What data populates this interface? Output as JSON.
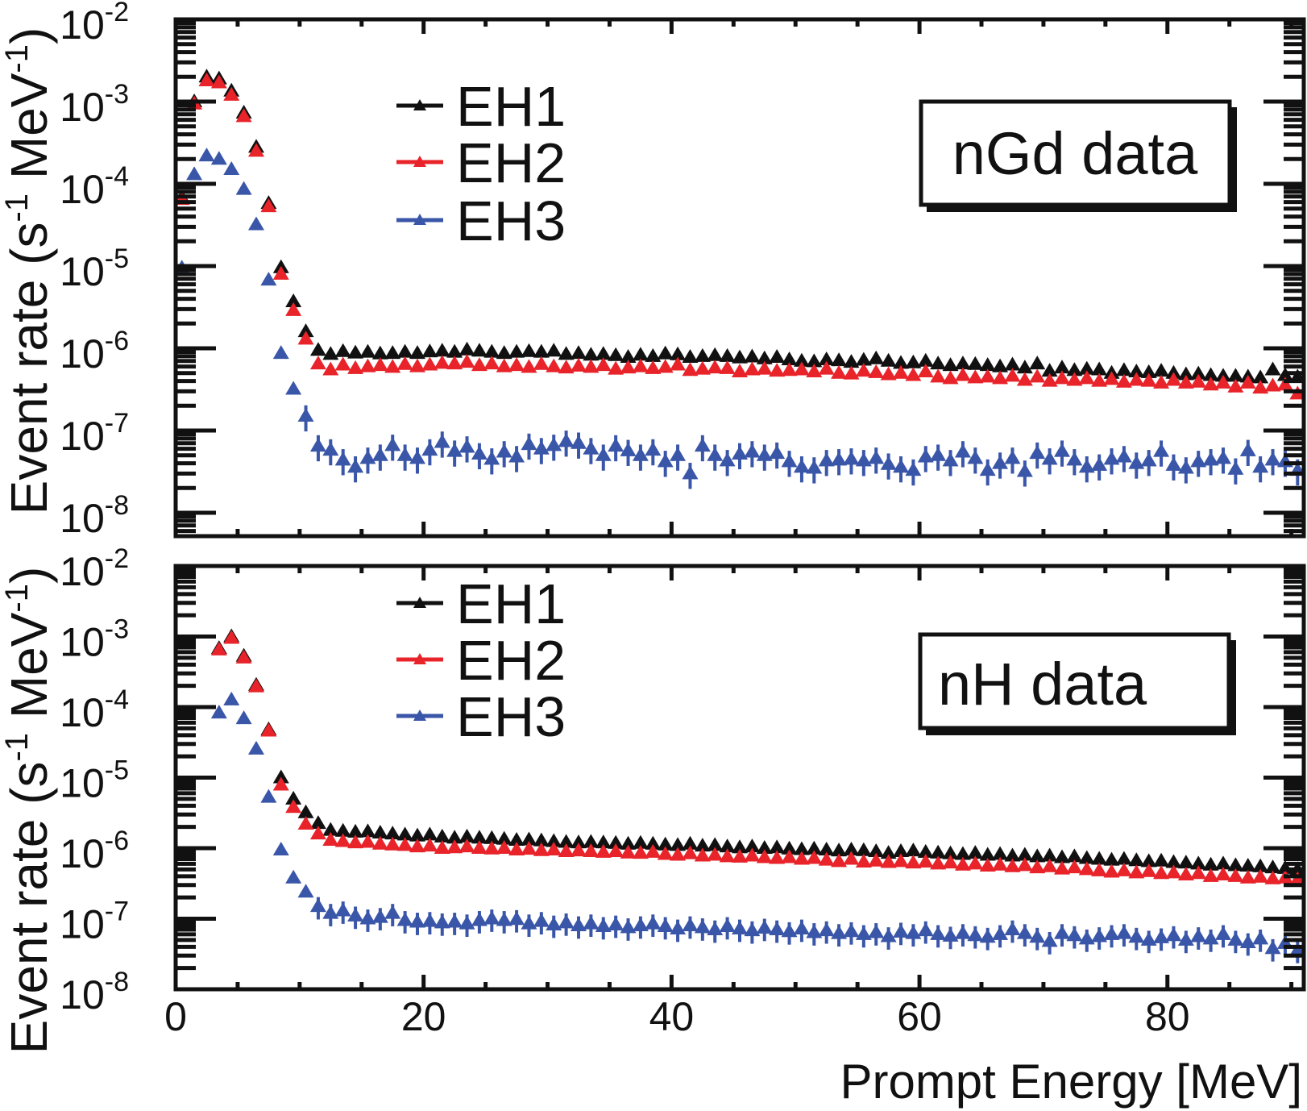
{
  "chart_data": [
    {
      "type": "scatter",
      "panel_label": "nGd data",
      "xlabel": "",
      "ylabel": "Event rate (s⁻¹ MeV⁻¹)",
      "ylabel_parts": {
        "main": "Event rate (s",
        "sup1": "-1",
        "mid": " MeV",
        "sup2": "-1",
        "end": ")"
      },
      "xlim": [
        0,
        91
      ],
      "ylim": [
        5e-09,
        0.01
      ],
      "yscale": "log",
      "x_ticks": [
        "0",
        "20",
        "40",
        "60",
        "80"
      ],
      "x_tick_values": [
        0,
        20,
        40,
        60,
        80
      ],
      "y_ticks": [
        {
          "base": "10",
          "exp": "-2",
          "value": 0.01
        },
        {
          "base": "10",
          "exp": "-3",
          "value": 0.001
        },
        {
          "base": "10",
          "exp": "-4",
          "value": 0.0001
        },
        {
          "base": "10",
          "exp": "-5",
          "value": 1e-05
        },
        {
          "base": "10",
          "exp": "-6",
          "value": 1e-06
        },
        {
          "base": "10",
          "exp": "-7",
          "value": 1e-07
        },
        {
          "base": "10",
          "exp": "-8",
          "value": 1e-08
        }
      ],
      "legend_position": "top-center",
      "x_start": 0.5,
      "bin_width": 1,
      "series": [
        {
          "name": "EH1",
          "color": "#111111",
          "values": [
            6.8e-05,
            0.001,
            0.002,
            0.0019,
            0.00135,
            0.00073,
            0.00028,
            5.8e-05,
            9.6e-06,
            3.7e-06,
            1.6e-06,
            9.5e-07,
            8.5e-07,
            9.2e-07,
            8.8e-07,
            9e-07,
            8.6e-07,
            8.7e-07,
            9e-07,
            8.7e-07,
            9.1e-07,
            9.3e-07,
            9e-07,
            9.6e-07,
            9.3e-07,
            9e-07,
            8.7e-07,
            9e-07,
            9.2e-07,
            9e-07,
            9.3e-07,
            8.5e-07,
            8.7e-07,
            8.3e-07,
            8.5e-07,
            8.2e-07,
            7.8e-07,
            8.3e-07,
            8e-07,
            8.6e-07,
            8.4e-07,
            7.8e-07,
            8e-07,
            8.2e-07,
            8e-07,
            7.7e-07,
            7.9e-07,
            7.5e-07,
            7.8e-07,
            7.3e-07,
            7e-07,
            6.9e-07,
            7.3e-07,
            7.1e-07,
            6.8e-07,
            7.2e-07,
            7.5e-07,
            7e-07,
            6.6e-07,
            6.7e-07,
            7e-07,
            6.5e-07,
            6.2e-07,
            6.5e-07,
            6.4e-07,
            6.2e-07,
            6e-07,
            6.3e-07,
            5.8e-07,
            6.5e-07,
            5.3e-07,
            5.8e-07,
            5.4e-07,
            5.6e-07,
            5.5e-07,
            5e-07,
            5.4e-07,
            5.2e-07,
            5.1e-07,
            5.3e-07,
            5e-07,
            4.8e-07,
            4.9e-07,
            4.7e-07,
            4.6e-07,
            4.6e-07,
            4.5e-07,
            4.4e-07,
            5.5e-07,
            4.7e-07,
            4.5e-07
          ]
        },
        {
          "name": "EH2",
          "color": "#e8232a",
          "values": [
            6.5e-05,
            0.00094,
            0.0018,
            0.0017,
            0.0012,
            0.00066,
            0.00025,
            5.3e-05,
            8e-06,
            2.9e-06,
            1.3e-06,
            6.5e-07,
            5.5e-07,
            6.3e-07,
            5.7e-07,
            6e-07,
            6.2e-07,
            5.9e-07,
            6.4e-07,
            6e-07,
            6.3e-07,
            6.6e-07,
            6.5e-07,
            6.8e-07,
            6.2e-07,
            6.5e-07,
            6e-07,
            6.2e-07,
            5.9e-07,
            6.4e-07,
            6e-07,
            5.8e-07,
            6.1e-07,
            5.9e-07,
            6.2e-07,
            5.6e-07,
            5.8e-07,
            6e-07,
            5.7e-07,
            5.9e-07,
            6.3e-07,
            5.4e-07,
            5.6e-07,
            5.8e-07,
            5.7e-07,
            5.2e-07,
            5.5e-07,
            5.6e-07,
            5.3e-07,
            5.4e-07,
            5.5e-07,
            5.2e-07,
            5.6e-07,
            5e-07,
            4.9e-07,
            5.3e-07,
            5.1e-07,
            4.8e-07,
            5e-07,
            4.7e-07,
            5.2e-07,
            4.5e-07,
            4.3e-07,
            4.7e-07,
            4.4e-07,
            4.5e-07,
            4.3e-07,
            4.6e-07,
            4.1e-07,
            4.5e-07,
            4e-07,
            4.3e-07,
            4.1e-07,
            4.3e-07,
            4e-07,
            4.2e-07,
            3.9e-07,
            4.1e-07,
            4e-07,
            3.8e-07,
            4.1e-07,
            3.8e-07,
            3.9e-07,
            3.6e-07,
            3.8e-07,
            3.4e-07,
            3.8e-07,
            3.3e-07,
            3.5e-07,
            3.6e-07,
            2.8e-07
          ]
        },
        {
          "name": "EH3",
          "color": "#3a56a8",
          "values": [
            9.5e-06,
            0.00013,
            0.00022,
            0.0002,
            0.00015,
            8.6e-05,
            3.2e-05,
            6.8e-06,
            8.7e-07,
            3.2e-07,
            1.5e-07,
            6.5e-08,
            5.8e-08,
            4.4e-08,
            3.6e-08,
            4.6e-08,
            5e-08,
            6.6e-08,
            5e-08,
            4.6e-08,
            5.8e-08,
            7.2e-08,
            5.6e-08,
            6.3e-08,
            5.2e-08,
            4.5e-08,
            5.5e-08,
            4.8e-08,
            6.8e-08,
            6e-08,
            6.6e-08,
            7.4e-08,
            7e-08,
            6e-08,
            5e-08,
            6.5e-08,
            5.7e-08,
            5e-08,
            5.8e-08,
            4.2e-08,
            5e-08,
            3e-08,
            6.5e-08,
            5e-08,
            4.3e-08,
            5.2e-08,
            5.5e-08,
            5e-08,
            5.3e-08,
            4.2e-08,
            3.6e-08,
            3.5e-08,
            4.3e-08,
            4.4e-08,
            4.5e-08,
            4.3e-08,
            4.6e-08,
            3.9e-08,
            3.6e-08,
            3.3e-08,
            4.8e-08,
            5e-08,
            4.3e-08,
            5.5e-08,
            4.6e-08,
            3.3e-08,
            4e-08,
            4.6e-08,
            3.2e-08,
            5.3e-08,
            4.5e-08,
            5.6e-08,
            4.4e-08,
            3.6e-08,
            3.8e-08,
            4.5e-08,
            4.8e-08,
            4e-08,
            4.3e-08,
            5.6e-08,
            3.8e-08,
            3.5e-08,
            4.2e-08,
            4.4e-08,
            4.6e-08,
            3.4e-08,
            5.7e-08,
            3.6e-08,
            4.4e-08,
            4.2e-08,
            3.3e-08
          ]
        }
      ]
    },
    {
      "type": "scatter",
      "panel_label": "nH data",
      "xlabel": "Prompt Energy [MeV]",
      "ylabel": "Event rate (s⁻¹ MeV⁻¹)",
      "ylabel_parts": {
        "main": "Event rate (s",
        "sup1": "-1",
        "mid": " MeV",
        "sup2": "-1",
        "end": ")"
      },
      "xlim": [
        0,
        91
      ],
      "ylim": [
        1e-08,
        0.01
      ],
      "yscale": "log",
      "x_ticks": [
        "0",
        "20",
        "40",
        "60",
        "80"
      ],
      "x_tick_values": [
        0,
        20,
        40,
        60,
        80
      ],
      "y_ticks": [
        {
          "base": "10",
          "exp": "-2",
          "value": 0.01
        },
        {
          "base": "10",
          "exp": "-3",
          "value": 0.001
        },
        {
          "base": "10",
          "exp": "-4",
          "value": 0.0001
        },
        {
          "base": "10",
          "exp": "-5",
          "value": 1e-05
        },
        {
          "base": "10",
          "exp": "-6",
          "value": 1e-06
        },
        {
          "base": "10",
          "exp": "-7",
          "value": 1e-07
        },
        {
          "base": "10",
          "exp": "-8",
          "value": 1e-08
        }
      ],
      "legend_position": "top-center",
      "x_start": 3.5,
      "bin_width": 1,
      "series": [
        {
          "name": "EH1",
          "color": "#111111",
          "values": [
            0.00068,
            0.001,
            0.00053,
            0.000205,
            4.8e-05,
            1e-05,
            5e-06,
            3.2e-06,
            2.25e-06,
            1.8e-06,
            1.75e-06,
            1.7e-06,
            1.72e-06,
            1.65e-06,
            1.6e-06,
            1.55e-06,
            1.5e-06,
            1.55e-06,
            1.45e-06,
            1.4e-06,
            1.45e-06,
            1.4e-06,
            1.38e-06,
            1.35e-06,
            1.3e-06,
            1.32e-06,
            1.28e-06,
            1.25e-06,
            1.22e-06,
            1.2e-06,
            1.22e-06,
            1.2e-06,
            1.18e-06,
            1.15e-06,
            1.18e-06,
            1.15e-06,
            1.12e-06,
            1.1e-06,
            1.15e-06,
            1.08e-06,
            1.1e-06,
            1.05e-06,
            1.02e-06,
            1.05e-06,
            1e-06,
            1.02e-06,
            9.8e-07,
            9.6e-07,
            9.8e-07,
            9.5e-07,
            9.2e-07,
            9.5e-07,
            9.3e-07,
            9e-07,
            8.5e-07,
            9e-07,
            9.2e-07,
            8.8e-07,
            8.6e-07,
            8.4e-07,
            8.2e-07,
            8.5e-07,
            8e-07,
            8.2e-07,
            7.8e-07,
            8e-07,
            7.6e-07,
            7.8e-07,
            7.4e-07,
            7.6e-07,
            7.2e-07,
            7e-07,
            6.8e-07,
            7e-07,
            6.7e-07,
            6.5e-07,
            6.6e-07,
            6.3e-07,
            6.2e-07,
            6e-07,
            5.8e-07,
            6e-07,
            5.7e-07,
            5.6e-07,
            5.5e-07,
            5.3e-07,
            5.2e-07,
            5e-07
          ]
        },
        {
          "name": "EH2",
          "color": "#e8232a",
          "values": [
            0.00065,
            0.00095,
            0.0005,
            0.000195,
            4.6e-05,
            7.9e-06,
            3.8e-06,
            2.2e-06,
            1.6e-06,
            1.3e-06,
            1.25e-06,
            1.2e-06,
            1.22e-06,
            1.15e-06,
            1.12e-06,
            1.1e-06,
            1.05e-06,
            1.08e-06,
            1e-06,
            1.02e-06,
            1.05e-06,
            1e-06,
            9.8e-07,
            1e-06,
            9.5e-07,
            9.7e-07,
            9.3e-07,
            9.5e-07,
            9e-07,
            9.2e-07,
            9e-07,
            8.8e-07,
            9e-07,
            8.6e-07,
            8.5e-07,
            8.8e-07,
            8.2e-07,
            8e-07,
            8.4e-07,
            7.8e-07,
            8e-07,
            7.6e-07,
            7.5e-07,
            7.8e-07,
            7.4e-07,
            7.2e-07,
            7.4e-07,
            7e-07,
            7.2e-07,
            6.8e-07,
            6.5e-07,
            7e-07,
            6.4e-07,
            6.6e-07,
            6.3e-07,
            6.5e-07,
            6.2e-07,
            6.4e-07,
            6e-07,
            6.2e-07,
            5.8e-07,
            6e-07,
            5.6e-07,
            5.8e-07,
            5.5e-07,
            5.7e-07,
            5.3e-07,
            5.5e-07,
            5.1e-07,
            5.3e-07,
            5e-07,
            4.8e-07,
            4.6e-07,
            4.8e-07,
            4.5e-07,
            4.7e-07,
            4.4e-07,
            4.5e-07,
            4.2e-07,
            4.4e-07,
            4e-07,
            4.2e-07,
            4e-07,
            3.8e-07,
            3.9e-07,
            3.7e-07,
            3.8e-07,
            3.6e-07
          ]
        },
        {
          "name": "EH3",
          "color": "#3a56a8",
          "values": [
            8.3e-05,
            0.000127,
            6.9e-05,
            2.55e-05,
            5.3e-06,
            9.5e-07,
            3.8e-07,
            2.4e-07,
            1.5e-07,
            1.2e-07,
            1.3e-07,
            1.1e-07,
            1e-07,
            1.05e-07,
            1.2e-07,
            9.5e-08,
            9e-08,
            9.2e-08,
            8.8e-08,
            9e-08,
            8.5e-08,
            9.5e-08,
            1e-07,
            9.5e-08,
            9.8e-08,
            8.5e-08,
            9.2e-08,
            8.2e-08,
            8.8e-08,
            8e-08,
            8.5e-08,
            7.8e-08,
            8.2e-08,
            7.5e-08,
            8e-08,
            8.5e-08,
            7.8e-08,
            7.2e-08,
            8e-08,
            7.5e-08,
            7e-08,
            7.8e-08,
            7.2e-08,
            6.8e-08,
            7.4e-08,
            7e-08,
            6.6e-08,
            7.2e-08,
            6.4e-08,
            6.8e-08,
            6.2e-08,
            6.6e-08,
            6e-08,
            6.4e-08,
            5.6e-08,
            6.5e-08,
            6.2e-08,
            6.8e-08,
            6e-08,
            5.7e-08,
            6.2e-08,
            5.8e-08,
            5.5e-08,
            6e-08,
            7e-08,
            6.2e-08,
            5.5e-08,
            4.8e-08,
            6.2e-08,
            5.8e-08,
            5.2e-08,
            5.6e-08,
            6e-08,
            6.2e-08,
            5.5e-08,
            5e-08,
            5.4e-08,
            5.8e-08,
            5e-08,
            5.6e-08,
            5.2e-08,
            6e-08,
            5e-08,
            4.6e-08,
            5.2e-08,
            3.8e-08,
            4.5e-08,
            3.6e-08
          ]
        }
      ]
    }
  ]
}
